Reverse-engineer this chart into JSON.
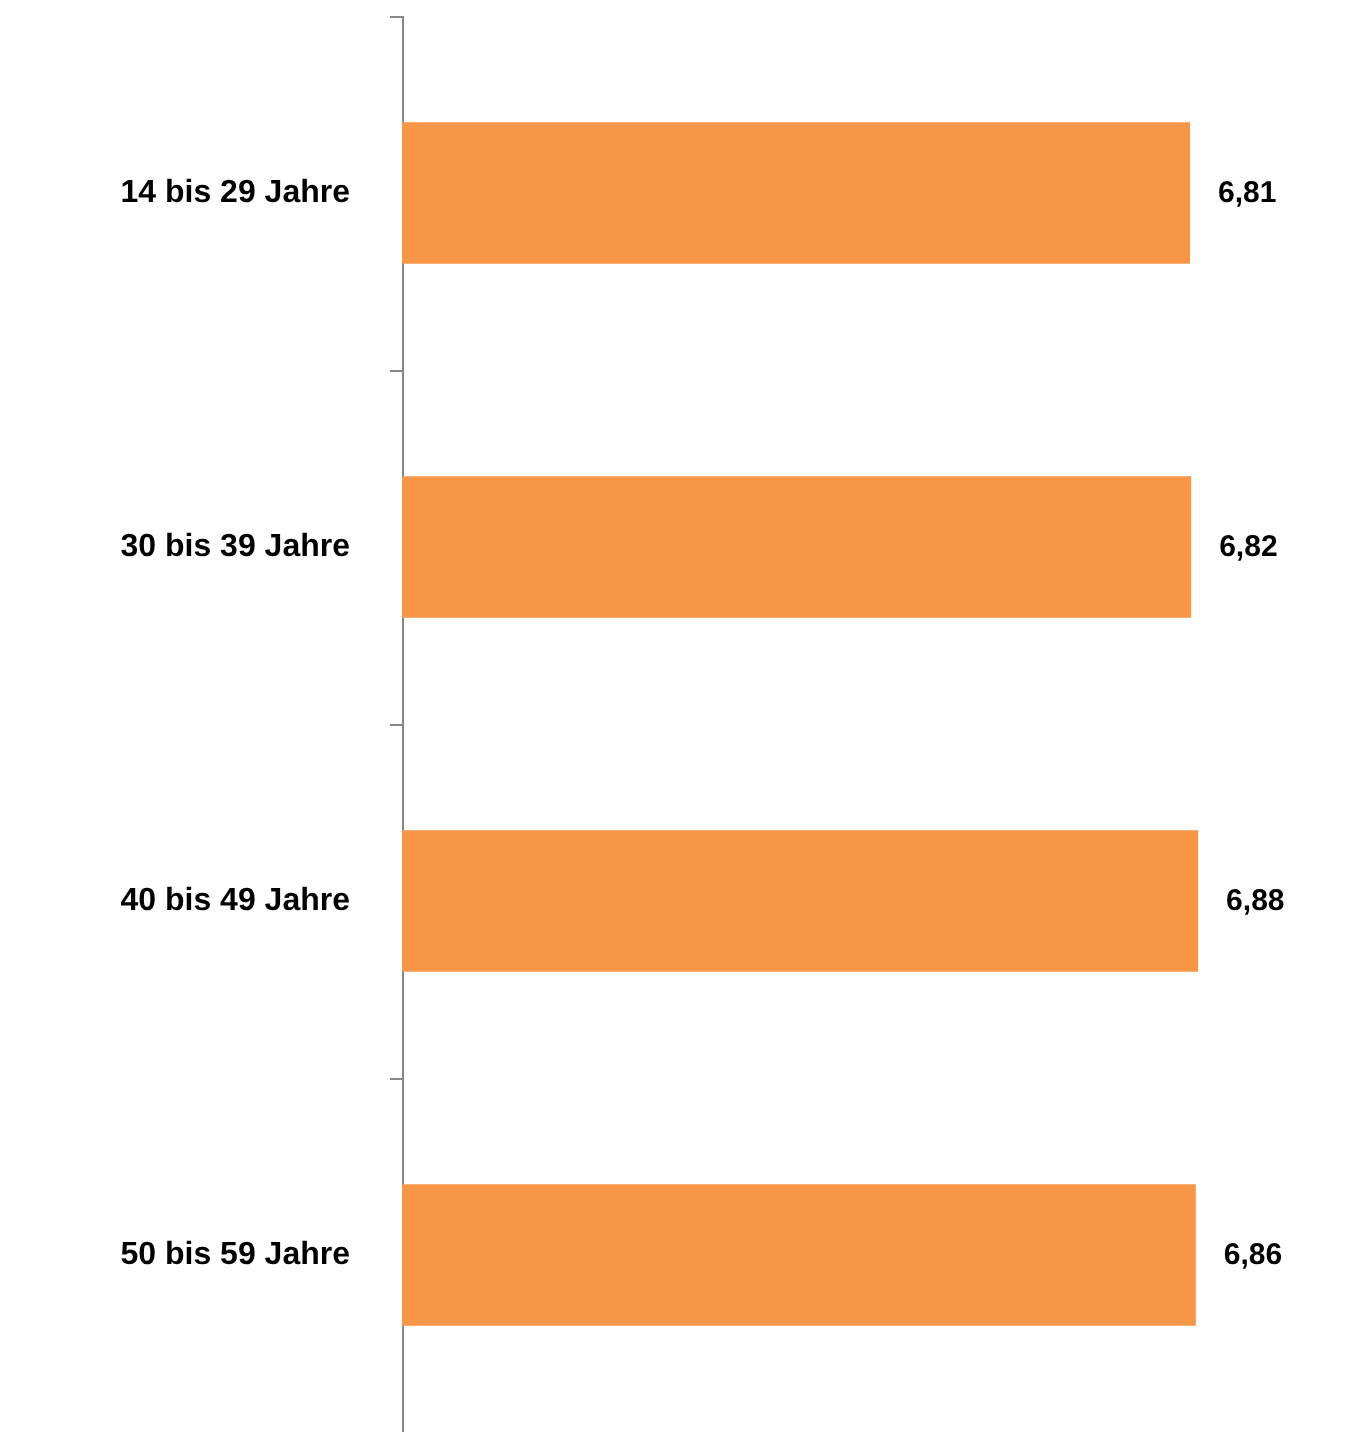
{
  "chart_data": {
    "type": "bar",
    "orientation": "horizontal",
    "categories": [
      "14 bis 29 Jahre",
      "30 bis 39 Jahre",
      "40 bis 49 Jahre",
      "50 bis 59 Jahre"
    ],
    "values": [
      6.81,
      6.82,
      6.88,
      6.86
    ],
    "value_labels": [
      "6,81",
      "6,82",
      "6,88",
      "6,86"
    ],
    "color": "#f79646"
  }
}
